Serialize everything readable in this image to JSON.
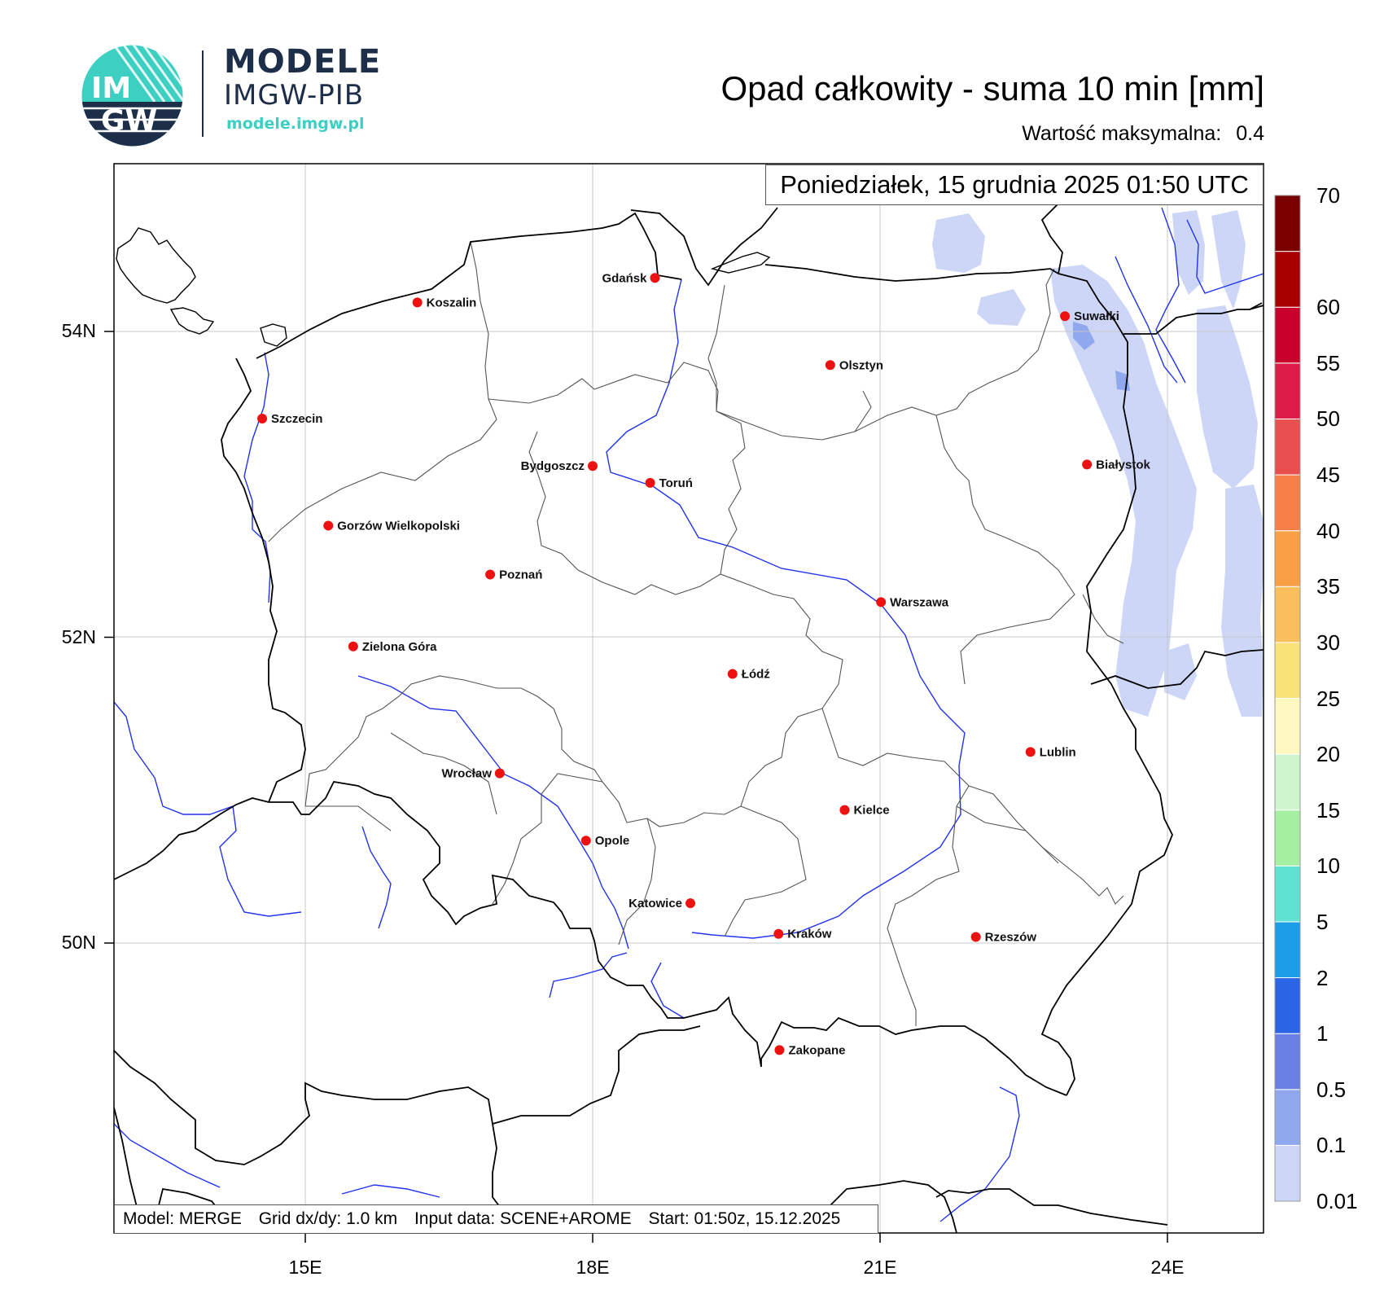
{
  "logo": {
    "emblem_text_top": "IM",
    "emblem_text_bottom": "GW",
    "name": "MODELE",
    "org": "IMGW-PIB",
    "url": "modele.imgw.pl",
    "colors": {
      "navy": "#1d2e49",
      "teal": "#3ecfc3"
    }
  },
  "header": {
    "title": "Opad całkowity - suma 10 min [mm]",
    "max_label": "Wartość maksymalna:",
    "max_value": "0.4",
    "date": "Poniedziałek, 15 grudnia 2025 01:50 UTC"
  },
  "footer": {
    "model": "Model: MERGE",
    "grid": "Grid dx/dy: 1.0 km",
    "input": "Input data: SCENE+AROME",
    "start": "Start: 01:50z, 15.12.2025"
  },
  "axes": {
    "lat_labels": [
      {
        "text": "54N",
        "lat": 54
      },
      {
        "text": "52N",
        "lat": 52
      },
      {
        "text": "50N",
        "lat": 50
      }
    ],
    "lon_labels": [
      {
        "text": "15E",
        "lon": 15
      },
      {
        "text": "18E",
        "lon": 18
      },
      {
        "text": "21E",
        "lon": 21
      },
      {
        "text": "24E",
        "lon": 24
      }
    ]
  },
  "colorbar": {
    "levels": [
      "0.01",
      "0.1",
      "0.5",
      "1",
      "2",
      "5",
      "10",
      "15",
      "20",
      "25",
      "30",
      "35",
      "40",
      "45",
      "50",
      "55",
      "60",
      "70"
    ],
    "colors": [
      "#cdd6f7",
      "#8fa8ee",
      "#6a7fe3",
      "#2c64e6",
      "#1a9de6",
      "#5fe2d0",
      "#a5f0a0",
      "#cff5cc",
      "#fdf8bf",
      "#f9e278",
      "#f8bf5c",
      "#f9a046",
      "#f77f48",
      "#e94f4f",
      "#dc1b46",
      "#c9002b",
      "#a80000",
      "#7a0000"
    ]
  },
  "cities": [
    {
      "name": "Koszalin",
      "lon": 16.17,
      "lat": 54.19
    },
    {
      "name": "Gdańsk",
      "lon": 18.65,
      "lat": 54.35
    },
    {
      "name": "Suwałki",
      "lon": 22.93,
      "lat": 54.1
    },
    {
      "name": "Olsztyn",
      "lon": 20.48,
      "lat": 53.78
    },
    {
      "name": "Szczecin",
      "lon": 14.55,
      "lat": 53.43
    },
    {
      "name": "Bydgoszcz",
      "lon": 18.0,
      "lat": 53.12
    },
    {
      "name": "Toruń",
      "lon": 18.6,
      "lat": 53.01
    },
    {
      "name": "Białystok",
      "lon": 23.16,
      "lat": 53.13
    },
    {
      "name": "Gorzów Wielkopolski",
      "lon": 15.24,
      "lat": 52.73
    },
    {
      "name": "Poznań",
      "lon": 16.93,
      "lat": 52.41
    },
    {
      "name": "Warszawa",
      "lon": 21.01,
      "lat": 52.23
    },
    {
      "name": "Zielona Góra",
      "lon": 15.5,
      "lat": 51.94
    },
    {
      "name": "Łódź",
      "lon": 19.46,
      "lat": 51.76
    },
    {
      "name": "Lublin",
      "lon": 22.57,
      "lat": 51.25
    },
    {
      "name": "Wrocław",
      "lon": 17.03,
      "lat": 51.11
    },
    {
      "name": "Kielce",
      "lon": 20.63,
      "lat": 50.87
    },
    {
      "name": "Opole",
      "lon": 17.93,
      "lat": 50.67
    },
    {
      "name": "Katowice",
      "lon": 19.02,
      "lat": 50.26
    },
    {
      "name": "Kraków",
      "lon": 19.94,
      "lat": 50.06
    },
    {
      "name": "Rzeszów",
      "lon": 22.0,
      "lat": 50.04
    },
    {
      "name": "Zakopane",
      "lon": 19.95,
      "lat": 49.3
    }
  ]
}
